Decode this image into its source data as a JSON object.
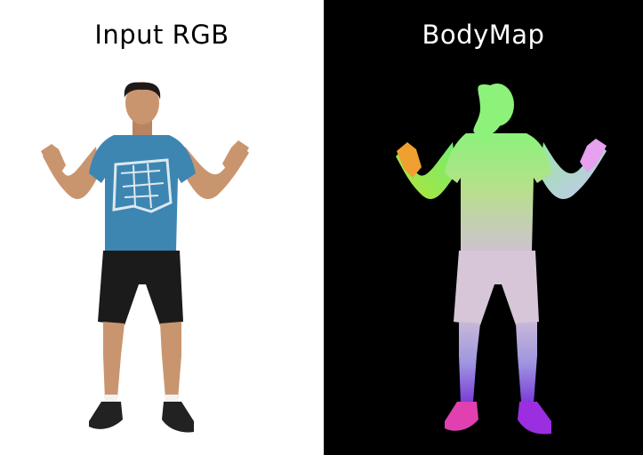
{
  "panels": {
    "left": {
      "title": "Input RGB",
      "background": "#ffffff"
    },
    "right": {
      "title": "BodyMap",
      "background": "#000000"
    }
  },
  "colors": {
    "skin": "#c9956f",
    "hair": "#1e1a18",
    "shirt": "#3d86b2",
    "shirt_print": "#dde8ee",
    "shorts": "#1b1b1b",
    "shoes": "#222222",
    "bodymap_head": "#8cf27a",
    "bodymap_torso": "#a6e68a",
    "bodymap_legs": "#b98fd6",
    "bodymap_left_hand": "#f0a030",
    "bodymap_right_hand": "#e8a0f0",
    "bodymap_feet": "#e040b0"
  }
}
